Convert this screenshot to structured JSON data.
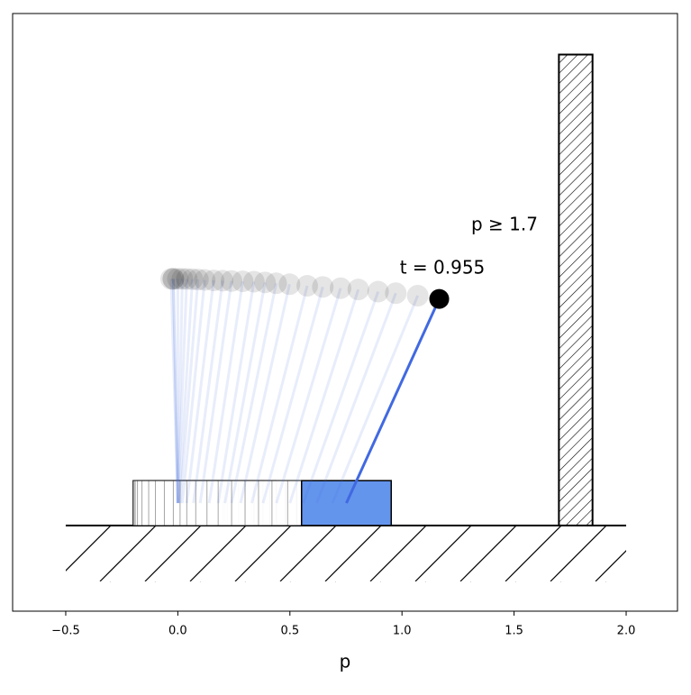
{
  "chart_data": {
    "type": "cartpole",
    "xlabel": "p",
    "annotations": [
      "p ≥ 1.7",
      "t = 0.955"
    ],
    "xlim": [
      -0.737,
      2.229
    ],
    "ylim": [
      -0.382,
      2.283
    ],
    "xticks": [
      {
        "value": -0.5,
        "label": "−0.5"
      },
      {
        "value": 0,
        "label": "0.0"
      },
      0.5,
      {
        "value": 1,
        "label": "1.0"
      },
      1.5,
      {
        "value": 2,
        "label": "2.0"
      }
    ],
    "track": [
      -0.5,
      2.0
    ],
    "ground_depth": 0.25,
    "wall": {
      "x": [
        1.7,
        1.85
      ],
      "top": 2.1
    },
    "cart": {
      "width": 0.4,
      "height": 0.2,
      "color": "#6495ed"
    },
    "pole": {
      "length": 1.0,
      "base": 0.1,
      "color": "#4169e1"
    },
    "p": [
      0,
      0,
      0,
      0,
      0,
      0,
      0.005,
      0.01,
      0.02,
      0.04,
      0.07,
      0.1,
      0.14,
      0.18,
      0.21,
      0.24,
      0.28,
      0.33,
      0.38,
      0.44,
      0.5,
      0.56,
      0.62,
      0.69,
      0.752
    ],
    "theta": [
      -0.02,
      -0.03,
      -0.02,
      0,
      0.02,
      0.04,
      0.06,
      0.08,
      0.1,
      0.12,
      0.13,
      0.14,
      0.15,
      0.16,
      0.18,
      0.2,
      0.22,
      0.25,
      0.27,
      0.29,
      0.31,
      0.34,
      0.36,
      0.39,
      0.427
    ]
  }
}
